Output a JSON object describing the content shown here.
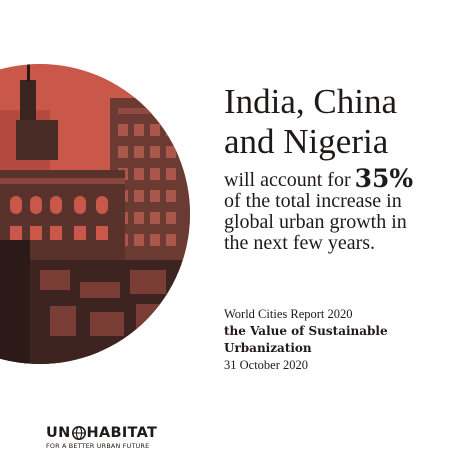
{
  "headline": {
    "line1": "India, China",
    "line2": "and Nigeria"
  },
  "stat": {
    "lead": "will account for",
    "value": "35%",
    "line2": "of the total increase in",
    "line3": "global urban growth in",
    "line4": "the next few years."
  },
  "report": {
    "source": "World Cities Report 2020",
    "title_line1": "the Value of Sustainable",
    "title_line2": "Urbanization",
    "date": "31 October 2020"
  },
  "logo": {
    "left": "UN",
    "right": "HABITAT",
    "tagline": "FOR A BETTER URBAN FUTURE"
  },
  "colors": {
    "accent": "#c9574a",
    "ink": "#1f1a17",
    "background": "#ffffff"
  }
}
